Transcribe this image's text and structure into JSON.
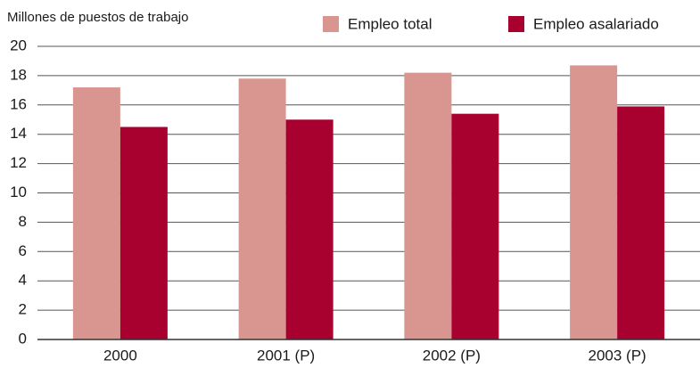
{
  "chart_data": {
    "type": "bar",
    "y_label": "Millones de puestos de trabajo",
    "categories": [
      "2000",
      "2001 (P)",
      "2002 (P)",
      "2003 (P)"
    ],
    "series": [
      {
        "name": "Empleo total",
        "color": "#d99691",
        "values": [
          17.2,
          17.8,
          18.2,
          18.7
        ]
      },
      {
        "name": "Empleo asalariado",
        "color": "#a8002f",
        "values": [
          14.5,
          15.0,
          15.4,
          15.9
        ]
      }
    ],
    "ylim": [
      0,
      20
    ],
    "yticks": [
      0,
      2,
      4,
      6,
      8,
      10,
      12,
      14,
      16,
      18,
      20
    ],
    "grid": true,
    "legend": "top"
  }
}
